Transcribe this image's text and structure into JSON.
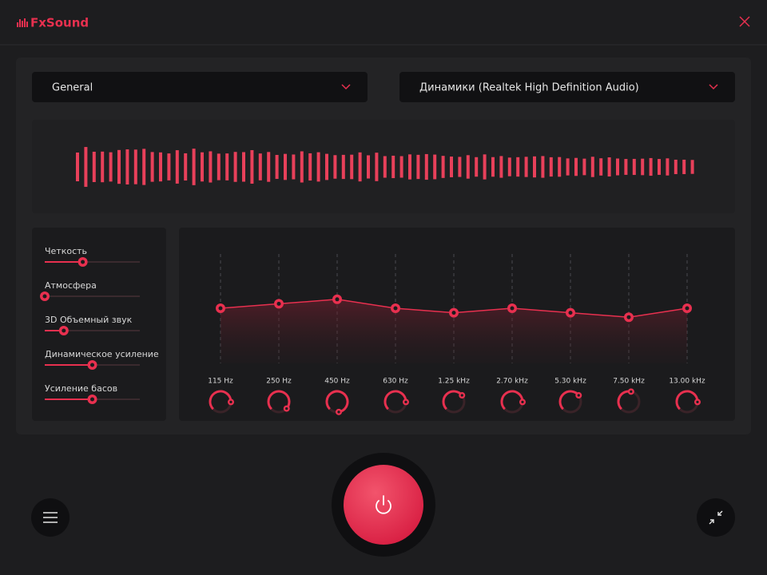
{
  "header": {
    "logo": "FxSound"
  },
  "dropdowns": {
    "preset": "General",
    "device": "Динамики (Realtek High Definition Audio)"
  },
  "effects": [
    {
      "label": "Четкость",
      "value": 4
    },
    {
      "label": "Атмосфера",
      "value": 0
    },
    {
      "label": "3D Объемный звук",
      "value": 2
    },
    {
      "label": "Динамическое усиление",
      "value": 5
    },
    {
      "label": "Усиление басов",
      "value": 5
    }
  ],
  "equalizer": {
    "bands": [
      {
        "label": "115 Hz",
        "gain": 0
      },
      {
        "label": "250 Hz",
        "gain": 1
      },
      {
        "label": "450 Hz",
        "gain": 2
      },
      {
        "label": "630 Hz",
        "gain": 0
      },
      {
        "label": "1.25 kHz",
        "gain": -1
      },
      {
        "label": "2.70 kHz",
        "gain": 0
      },
      {
        "label": "5.30 kHz",
        "gain": -1
      },
      {
        "label": "7.50 kHz",
        "gain": -2
      },
      {
        "label": "13.00 kHz",
        "gain": 0
      }
    ]
  }
}
